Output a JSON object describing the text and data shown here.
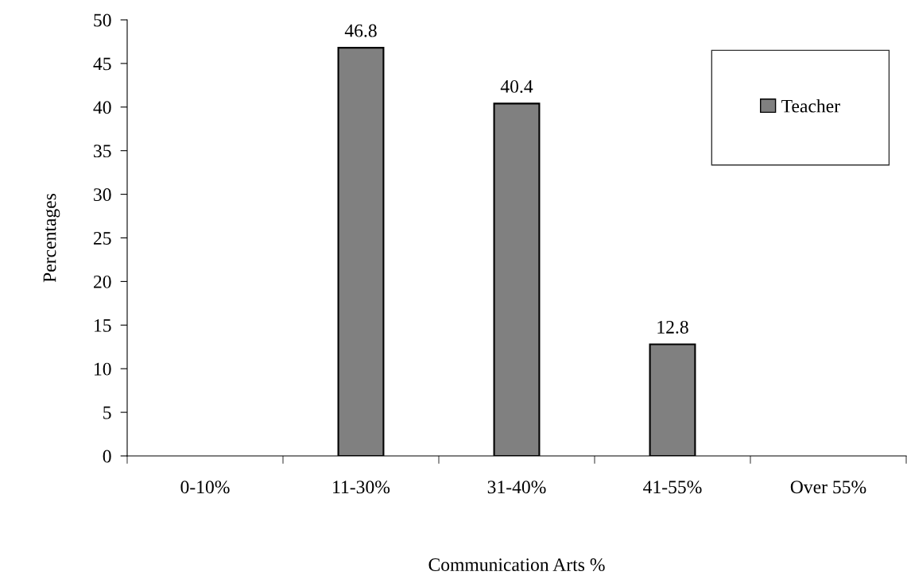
{
  "chart_data": {
    "type": "bar",
    "xlabel": "Communication Arts %",
    "ylabel": "Percentages",
    "categories": [
      "0-10%",
      "11-30%",
      "31-40%",
      "41-55%",
      "Over 55%"
    ],
    "series": [
      {
        "name": "Teacher",
        "color": "#808080",
        "values": [
          null,
          46.8,
          40.4,
          12.8,
          null
        ]
      }
    ],
    "ylim": [
      0,
      50
    ],
    "yticks": [
      0,
      5,
      10,
      15,
      20,
      25,
      30,
      35,
      40,
      45,
      50
    ],
    "data_labels": true,
    "legend": "top right",
    "grid": false
  }
}
